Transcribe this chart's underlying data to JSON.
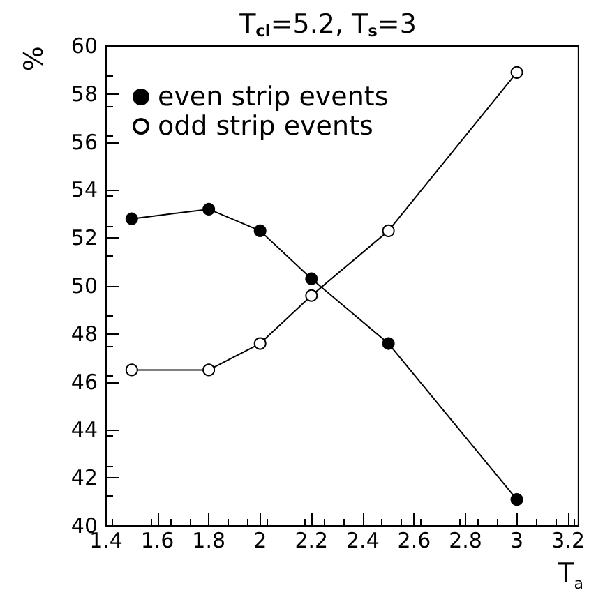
{
  "chart_data": {
    "type": "line",
    "title": "T$_{cl}$=5.2, T$_{s}$=3",
    "xlabel": "T$_{a}$",
    "ylabel": "%",
    "x": [
      1.5,
      1.8,
      2,
      2.2,
      2.5,
      3
    ],
    "series": [
      {
        "name": "even strip events",
        "color": "#000000",
        "values": [
          52.8,
          53.2,
          52.3,
          50.3,
          47.6,
          41.1
        ]
      },
      {
        "name": "odd strip events",
        "color": "#000000",
        "values": [
          46.5,
          46.5,
          47.6,
          49.6,
          52.3,
          58.9
        ]
      }
    ],
    "xlim": [
      1.4,
      3.24
    ],
    "xticks": [
      1.4,
      1.6,
      1.8,
      2,
      2.2,
      2.4,
      2.6,
      2.8,
      3,
      3.2
    ],
    "ylim": [
      40,
      60
    ],
    "yticks": [
      40,
      42,
      44,
      46,
      48,
      50,
      52,
      54,
      56,
      58,
      60
    ],
    "grid": false,
    "legend": "top left",
    "marker": "circle",
    "line_style": "solid"
  }
}
